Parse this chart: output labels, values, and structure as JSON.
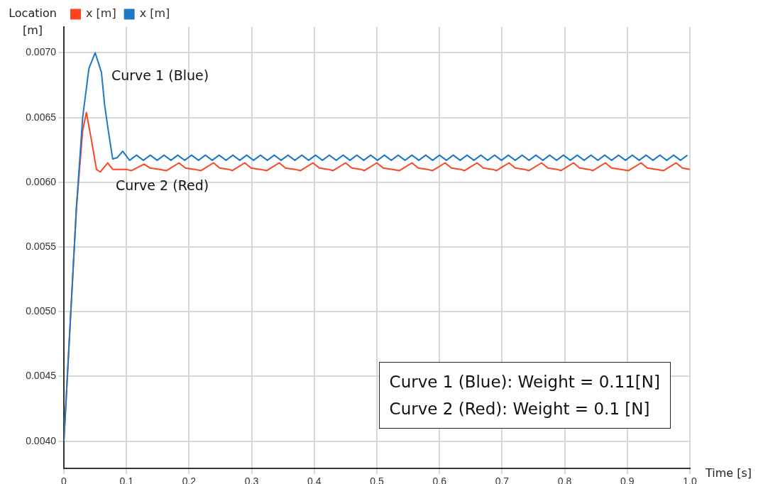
{
  "chart_data": {
    "type": "line",
    "xlabel": "Time [s]",
    "ylabel": "Location [m]",
    "xlim": [
      0,
      1
    ],
    "ylim": [
      0.00379,
      0.0072
    ],
    "xticks": [
      0,
      0.1,
      0.2,
      0.3,
      0.4,
      0.5,
      0.6,
      0.7,
      0.8,
      0.9,
      {
        "value": 1,
        "label": "1.0"
      }
    ],
    "yticks": [
      {
        "value": 0.004,
        "label": "0.0040"
      },
      {
        "value": 0.0045,
        "label": "0.0045"
      },
      {
        "value": 0.005,
        "label": "0.0050"
      },
      {
        "value": 0.0055,
        "label": "0.0055"
      },
      {
        "value": 0.006,
        "label": "0.0060"
      },
      {
        "value": 0.0065,
        "label": "0.0065"
      },
      {
        "value": 0.007,
        "label": "0.0070"
      }
    ],
    "grid": true,
    "legend": "top left",
    "marker": "none",
    "line_style": "solid",
    "series": [
      {
        "name": "x [m]",
        "color": "#ff4422",
        "x": [
          0,
          0.01,
          0.02,
          0.03,
          0.036,
          0.045,
          0.052,
          0.058,
          0.07,
          0.078,
          0.1,
          0.108,
          0.128,
          0.138,
          0.153,
          0.164,
          0.184,
          0.194,
          0.209,
          0.219,
          0.239,
          0.249,
          0.264,
          0.269,
          0.289,
          0.299,
          0.314,
          0.324,
          0.344,
          0.354,
          0.369,
          0.378,
          0.398,
          0.408,
          0.423,
          0.43,
          0.45,
          0.46,
          0.475,
          0.48,
          0.5,
          0.51,
          0.525,
          0.536,
          0.556,
          0.566,
          0.581,
          0.589,
          0.609,
          0.619,
          0.634,
          0.64,
          0.66,
          0.67,
          0.685,
          0.691,
          0.711,
          0.721,
          0.736,
          0.743,
          0.763,
          0.773,
          0.788,
          0.794,
          0.814,
          0.824,
          0.839,
          0.845,
          0.865,
          0.875,
          0.89,
          0.902,
          0.922,
          0.932,
          0.947,
          0.958,
          0.978,
          0.988,
          1
        ],
        "values": [
          0.004,
          0.0049,
          0.0058,
          0.0064,
          0.00654,
          0.0063,
          0.0061,
          0.00608,
          0.00615,
          0.0061,
          0.0061,
          0.00609,
          0.00614,
          0.00611,
          0.0061,
          0.00609,
          0.00615,
          0.00611,
          0.0061,
          0.00609,
          0.00615,
          0.00611,
          0.0061,
          0.00609,
          0.00615,
          0.00611,
          0.0061,
          0.00609,
          0.00615,
          0.00611,
          0.0061,
          0.00609,
          0.00615,
          0.00611,
          0.0061,
          0.00609,
          0.00615,
          0.00611,
          0.0061,
          0.00609,
          0.00615,
          0.00611,
          0.0061,
          0.00609,
          0.00615,
          0.00611,
          0.0061,
          0.00609,
          0.00615,
          0.00611,
          0.0061,
          0.00609,
          0.00615,
          0.00611,
          0.0061,
          0.00609,
          0.00615,
          0.00611,
          0.0061,
          0.00609,
          0.00615,
          0.00611,
          0.0061,
          0.00609,
          0.00615,
          0.00611,
          0.0061,
          0.00609,
          0.00615,
          0.00611,
          0.0061,
          0.00609,
          0.00615,
          0.00611,
          0.0061,
          0.00609,
          0.00615,
          0.00611,
          0.0061
        ]
      },
      {
        "name": "x [m]",
        "color": "#1e78c8",
        "x": [
          0,
          0.01,
          0.02,
          0.03,
          0.04,
          0.05,
          0.06,
          0.065,
          0.07,
          0.078,
          0.085,
          0.094,
          0.105,
          0.116,
          0.127,
          0.138,
          0.149,
          0.16,
          0.171,
          0.182,
          0.193,
          0.204,
          0.215,
          0.226,
          0.237,
          0.248,
          0.259,
          0.27,
          0.281,
          0.292,
          0.303,
          0.314,
          0.325,
          0.336,
          0.347,
          0.358,
          0.369,
          0.38,
          0.391,
          0.402,
          0.413,
          0.424,
          0.435,
          0.446,
          0.457,
          0.468,
          0.479,
          0.49,
          0.501,
          0.512,
          0.523,
          0.534,
          0.545,
          0.556,
          0.567,
          0.578,
          0.589,
          0.6,
          0.611,
          0.622,
          0.633,
          0.644,
          0.655,
          0.666,
          0.677,
          0.688,
          0.699,
          0.71,
          0.721,
          0.732,
          0.743,
          0.754,
          0.765,
          0.776,
          0.787,
          0.798,
          0.809,
          0.82,
          0.831,
          0.842,
          0.853,
          0.864,
          0.875,
          0.886,
          0.897,
          0.908,
          0.919,
          0.93,
          0.941,
          0.952,
          0.963,
          0.974,
          0.985,
          0.996
        ],
        "values": [
          0.004,
          0.0049,
          0.0058,
          0.0065,
          0.00688,
          0.007,
          0.00685,
          0.0066,
          0.00643,
          0.00618,
          0.00619,
          0.00624,
          0.00617,
          0.00621,
          0.00617,
          0.00621,
          0.00617,
          0.00621,
          0.00617,
          0.00621,
          0.00617,
          0.00621,
          0.00617,
          0.00621,
          0.00617,
          0.00621,
          0.00617,
          0.00621,
          0.00617,
          0.00621,
          0.00617,
          0.00621,
          0.00617,
          0.00621,
          0.00617,
          0.00621,
          0.00617,
          0.00621,
          0.00617,
          0.00621,
          0.00617,
          0.00621,
          0.00617,
          0.00621,
          0.00617,
          0.00621,
          0.00617,
          0.00621,
          0.00617,
          0.00621,
          0.00617,
          0.00621,
          0.00617,
          0.00621,
          0.00617,
          0.00621,
          0.00617,
          0.00621,
          0.00617,
          0.00621,
          0.00617,
          0.00621,
          0.00617,
          0.00621,
          0.00617,
          0.00621,
          0.00617,
          0.00621,
          0.00617,
          0.00621,
          0.00617,
          0.00621,
          0.00617,
          0.00621,
          0.00617,
          0.00621,
          0.00617,
          0.00621,
          0.00617,
          0.00621,
          0.00617,
          0.00621,
          0.00617,
          0.00621,
          0.00617,
          0.00621,
          0.00617,
          0.00621,
          0.00617,
          0.00621,
          0.00617,
          0.00621,
          0.00617,
          0.00621
        ]
      }
    ],
    "annotations": [
      "Curve 1 (Blue)",
      "Curve 2 (Red)",
      "Curve 1 (Blue): Weight = 0.11[N]",
      "Curve 2 (Red): Weight = 0.1 [N]"
    ]
  }
}
